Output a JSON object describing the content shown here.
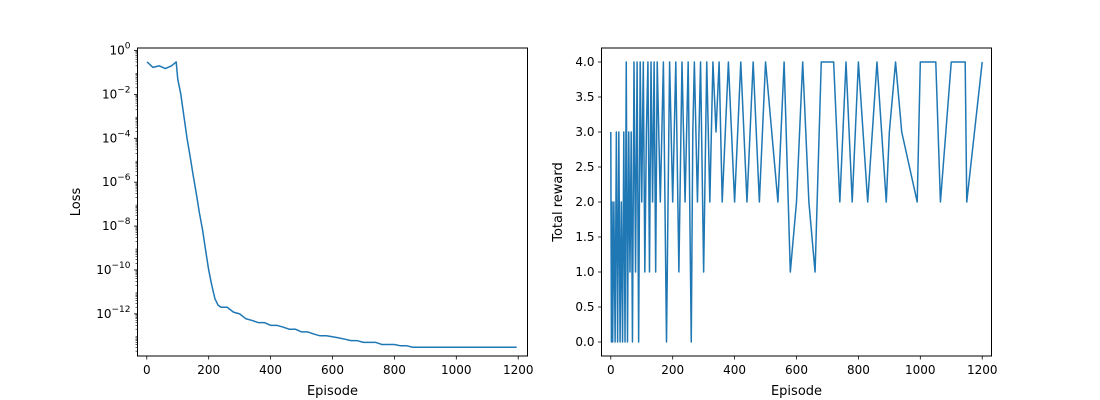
{
  "chart_data": [
    {
      "type": "line",
      "xlabel": "Episode",
      "ylabel": "Loss",
      "yscale": "log",
      "xlim": [
        -30,
        1230
      ],
      "ylim": [
        1.2e-14,
        1.3
      ],
      "grid": false,
      "legend": "none",
      "xticks": [
        0,
        200,
        400,
        600,
        800,
        1000,
        1200
      ],
      "xtick_labels": [
        "0",
        "200",
        "400",
        "600",
        "800",
        "1000",
        "1200"
      ],
      "yticks": [
        1e-12,
        1e-10,
        1e-08,
        1e-06,
        0.0001,
        0.01,
        1
      ],
      "ytick_labels": [
        {
          "base": "10",
          "exp": "−12"
        },
        {
          "base": "10",
          "exp": "−10"
        },
        {
          "base": "10",
          "exp": "−8"
        },
        {
          "base": "10",
          "exp": "−6"
        },
        {
          "base": "10",
          "exp": "−4"
        },
        {
          "base": "10",
          "exp": "−2"
        },
        {
          "base": "10",
          "exp": "0"
        }
      ],
      "color": "#1f77b4",
      "series": [
        {
          "x": [
            1,
            20,
            40,
            60,
            80,
            95,
            100,
            110,
            120,
            130,
            140,
            150,
            160,
            170,
            180,
            190,
            200,
            210,
            220,
            230,
            240,
            260,
            280,
            300,
            320,
            340,
            360,
            380,
            400,
            420,
            440,
            460,
            480,
            500,
            520,
            540,
            560,
            580,
            600,
            620,
            640,
            660,
            680,
            700,
            720,
            740,
            760,
            780,
            800,
            820,
            840,
            860,
            880,
            900,
            920,
            940,
            960,
            980,
            1000,
            1020,
            1040,
            1060,
            1080,
            1100,
            1120,
            1140,
            1160,
            1180,
            1195
          ],
          "y": [
            0.3,
            0.17,
            0.2,
            0.15,
            0.2,
            0.3,
            0.05,
            0.01,
            0.001,
            0.0001,
            1.5e-05,
            2e-06,
            3e-07,
            4e-08,
            7e-09,
            8e-10,
            1e-10,
            2e-11,
            5e-12,
            2.5e-12,
            2e-12,
            2e-12,
            1.2e-12,
            1e-12,
            6e-13,
            5e-13,
            4e-13,
            4e-13,
            3e-13,
            3e-13,
            2.5e-13,
            2e-13,
            2e-13,
            1.5e-13,
            1.5e-13,
            1.2e-13,
            1e-13,
            1e-13,
            9e-14,
            8e-14,
            7e-14,
            6e-14,
            6e-14,
            5e-14,
            5e-14,
            5e-14,
            4e-14,
            4e-14,
            4e-14,
            3.5e-14,
            3.5e-14,
            3e-14,
            3e-14,
            3e-14,
            3e-14,
            3e-14,
            3e-14,
            3e-14,
            3e-14,
            3e-14,
            3e-14,
            3e-14,
            3e-14,
            3e-14,
            3e-14,
            3e-14,
            3e-14,
            3e-14,
            3e-14
          ]
        }
      ]
    },
    {
      "type": "line",
      "xlabel": "Episode",
      "ylabel": "Total reward",
      "xlim": [
        -30,
        1230
      ],
      "ylim": [
        -0.2,
        4.2
      ],
      "grid": false,
      "legend": "none",
      "xticks": [
        0,
        200,
        400,
        600,
        800,
        1000,
        1200
      ],
      "xtick_labels": [
        "0",
        "200",
        "400",
        "600",
        "800",
        "1000",
        "1200"
      ],
      "yticks": [
        0.0,
        0.5,
        1.0,
        1.5,
        2.0,
        2.5,
        3.0,
        3.5,
        4.0
      ],
      "ytick_labels": [
        "0.0",
        "0.5",
        "1.0",
        "1.5",
        "2.0",
        "2.5",
        "3.0",
        "3.5",
        "4.0"
      ],
      "color": "#1f77b4",
      "series": [
        {
          "x": [
            0,
            2,
            4,
            6,
            10,
            14,
            18,
            22,
            26,
            30,
            34,
            38,
            42,
            46,
            50,
            54,
            58,
            62,
            66,
            70,
            75,
            80,
            85,
            90,
            95,
            100,
            105,
            110,
            115,
            120,
            125,
            130,
            135,
            140,
            145,
            150,
            160,
            170,
            180,
            190,
            200,
            210,
            220,
            230,
            240,
            250,
            260,
            265,
            270,
            280,
            290,
            300,
            310,
            320,
            330,
            340,
            350,
            360,
            380,
            400,
            420,
            440,
            460,
            480,
            500,
            520,
            540,
            560,
            580,
            600,
            620,
            640,
            660,
            680,
            700,
            720,
            740,
            760,
            780,
            800,
            830,
            860,
            890,
            900,
            920,
            940,
            990,
            1000,
            1050,
            1065,
            1100,
            1145,
            1150,
            1200
          ],
          "y": [
            3,
            0,
            2,
            0,
            2,
            0,
            3,
            0,
            3,
            0,
            2,
            0,
            3,
            0,
            4,
            0,
            3,
            1,
            3,
            0,
            4,
            1,
            4,
            0,
            4,
            2,
            4,
            1,
            3,
            4,
            1,
            4,
            2,
            4,
            1,
            4,
            2,
            4,
            0,
            4,
            2,
            4,
            1,
            4,
            2,
            4,
            0,
            3,
            4,
            2,
            4,
            1,
            4,
            2,
            4,
            3,
            4,
            2,
            4,
            2,
            4,
            2,
            4,
            2,
            4,
            3,
            2,
            4,
            1,
            2,
            4,
            2,
            1,
            4,
            4,
            4,
            2,
            4,
            2,
            4,
            2,
            4,
            2,
            3,
            4,
            3,
            2,
            4,
            4,
            2,
            4,
            4,
            2,
            4
          ]
        }
      ]
    }
  ]
}
